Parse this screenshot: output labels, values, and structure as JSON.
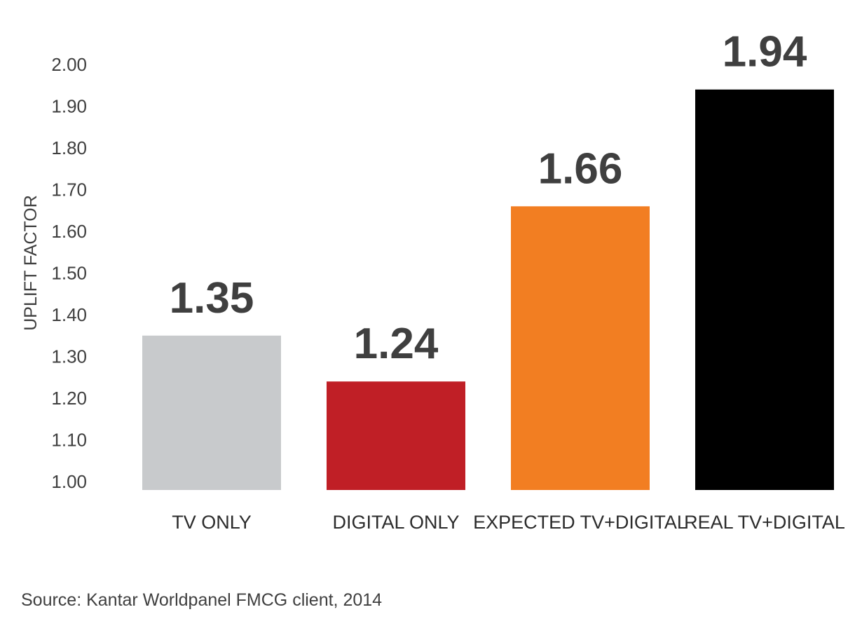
{
  "chart_data": {
    "type": "bar",
    "ylabel": "UPLIFT FACTOR",
    "xlabel": "",
    "categories": [
      "TV ONLY",
      "DIGITAL ONLY",
      "EXPECTED TV+DIGITAL",
      "REAL TV+DIGITAL"
    ],
    "values": [
      1.35,
      1.24,
      1.66,
      1.94
    ],
    "data_labels": [
      "1.35",
      "1.24",
      "1.66",
      "1.94"
    ],
    "colors": [
      "#c8cacc",
      "#c01f26",
      "#f27e22",
      "#000000"
    ],
    "ylim": [
      1.0,
      2.0
    ],
    "yticks": [
      "1.00",
      "1.10",
      "1.20",
      "1.30",
      "1.40",
      "1.50",
      "1.60",
      "1.70",
      "1.80",
      "1.90",
      "2.00"
    ],
    "grid": false,
    "legend": "none"
  },
  "source": "Source: Kantar Worldpanel FMCG client, 2014"
}
